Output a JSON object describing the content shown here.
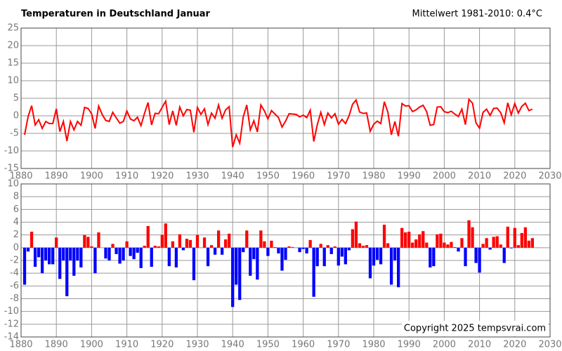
{
  "chart_data": [
    {
      "type": "line",
      "title": "Temperaturen in Deutschland Januar",
      "subtitle": "Mittelwert 1981-2010: 0.4°C",
      "color": "#ff0000",
      "x": [
        1881,
        1882,
        1883,
        1884,
        1885,
        1886,
        1887,
        1888,
        1889,
        1890,
        1891,
        1892,
        1893,
        1894,
        1895,
        1896,
        1897,
        1898,
        1899,
        1900,
        1901,
        1902,
        1903,
        1904,
        1905,
        1906,
        1907,
        1908,
        1909,
        1910,
        1911,
        1912,
        1913,
        1914,
        1915,
        1916,
        1917,
        1918,
        1919,
        1920,
        1921,
        1922,
        1923,
        1924,
        1925,
        1926,
        1927,
        1928,
        1929,
        1930,
        1931,
        1932,
        1933,
        1934,
        1935,
        1936,
        1937,
        1938,
        1939,
        1940,
        1941,
        1942,
        1943,
        1944,
        1945,
        1946,
        1947,
        1948,
        1949,
        1950,
        1951,
        1952,
        1953,
        1954,
        1955,
        1956,
        1957,
        1958,
        1959,
        1960,
        1961,
        1962,
        1963,
        1964,
        1965,
        1966,
        1967,
        1968,
        1969,
        1970,
        1971,
        1972,
        1973,
        1974,
        1975,
        1976,
        1977,
        1978,
        1979,
        1980,
        1981,
        1982,
        1983,
        1984,
        1985,
        1986,
        1987,
        1988,
        1989,
        1990,
        1991,
        1992,
        1993,
        1994,
        1995,
        1996,
        1997,
        1998,
        1999,
        2000,
        2001,
        2002,
        2003,
        2004,
        2005,
        2006,
        2007,
        2008,
        2009,
        2010,
        2011,
        2012,
        2013,
        2014,
        2015,
        2016,
        2017,
        2018,
        2019,
        2020,
        2021,
        2022,
        2023,
        2024,
        2025
      ],
      "values": [
        -5.4,
        -0.2,
        2.9,
        -2.6,
        -1.1,
        -3.6,
        -1.6,
        -2.2,
        -2.2,
        2.0,
        -4.5,
        -1.6,
        -7.2,
        -1.6,
        -4.0,
        -1.6,
        -2.7,
        2.4,
        2.1,
        0.6,
        -3.6,
        2.8,
        0.4,
        -1.3,
        -1.6,
        1.0,
        -0.6,
        -2.1,
        -1.6,
        1.4,
        -0.9,
        -1.4,
        -0.4,
        -2.8,
        0.7,
        3.8,
        -2.6,
        0.7,
        0.6,
        2.4,
        4.2,
        -2.5,
        1.4,
        -2.7,
        2.5,
        0.0,
        1.8,
        1.6,
        -4.7,
        2.4,
        0.4,
        2.0,
        -2.5,
        0.8,
        -0.7,
        3.1,
        -0.7,
        1.7,
        2.6,
        -8.9,
        -5.4,
        -7.8,
        -0.3,
        3.1,
        -4.0,
        -1.4,
        -4.6,
        3.1,
        1.4,
        -0.9,
        1.5,
        0.5,
        -0.5,
        -3.2,
        -1.5,
        0.6,
        0.5,
        0.4,
        -0.3,
        0.2,
        -0.5,
        1.6,
        -7.3,
        -2.5,
        1.0,
        -2.5,
        0.8,
        -0.6,
        0.6,
        -2.4,
        -1.0,
        -2.2,
        0.0,
        3.3,
        4.5,
        1.1,
        0.7,
        0.8,
        -4.4,
        -2.4,
        -1.5,
        -2.2,
        4.0,
        1.1,
        -5.4,
        -1.6,
        -5.8,
        3.5,
        2.8,
        2.9,
        1.2,
        1.7,
        2.5,
        3.0,
        1.2,
        -2.7,
        -2.5,
        2.5,
        2.6,
        1.2,
        0.9,
        1.3,
        0.5,
        -0.2,
        1.9,
        -2.5,
        4.7,
        3.6,
        -2.0,
        -3.5,
        1.0,
        1.9,
        0.1,
        2.1,
        2.2,
        0.9,
        -2.0,
        3.7,
        0.3,
        3.5,
        0.8,
        2.7,
        3.6,
        1.5,
        1.9
      ],
      "xlim": [
        1880,
        2030
      ],
      "xticks": [
        1880,
        1890,
        1900,
        1910,
        1920,
        1930,
        1940,
        1950,
        1960,
        1970,
        1980,
        1990,
        2000,
        2010,
        2020,
        2030
      ],
      "ylim": [
        -15,
        25
      ],
      "yticks": [
        -15,
        -10,
        -5,
        0,
        5,
        10,
        15,
        20,
        25
      ],
      "grid": true
    },
    {
      "type": "bar",
      "annotation": "Copyright 2025 tempsvrai.com",
      "colors": {
        "positive": "#ff0000",
        "negative": "#0000ff"
      },
      "x": [
        1881,
        1882,
        1883,
        1884,
        1885,
        1886,
        1887,
        1888,
        1889,
        1890,
        1891,
        1892,
        1893,
        1894,
        1895,
        1896,
        1897,
        1898,
        1899,
        1900,
        1901,
        1902,
        1903,
        1904,
        1905,
        1906,
        1907,
        1908,
        1909,
        1910,
        1911,
        1912,
        1913,
        1914,
        1915,
        1916,
        1917,
        1918,
        1919,
        1920,
        1921,
        1922,
        1923,
        1924,
        1925,
        1926,
        1927,
        1928,
        1929,
        1930,
        1931,
        1932,
        1933,
        1934,
        1935,
        1936,
        1937,
        1938,
        1939,
        1940,
        1941,
        1942,
        1943,
        1944,
        1945,
        1946,
        1947,
        1948,
        1949,
        1950,
        1951,
        1952,
        1953,
        1954,
        1955,
        1956,
        1957,
        1958,
        1959,
        1960,
        1961,
        1962,
        1963,
        1964,
        1965,
        1966,
        1967,
        1968,
        1969,
        1970,
        1971,
        1972,
        1973,
        1974,
        1975,
        1976,
        1977,
        1978,
        1979,
        1980,
        1981,
        1982,
        1983,
        1984,
        1985,
        1986,
        1987,
        1988,
        1989,
        1990,
        1991,
        1992,
        1993,
        1994,
        1995,
        1996,
        1997,
        1998,
        1999,
        2000,
        2001,
        2002,
        2003,
        2004,
        2005,
        2006,
        2007,
        2008,
        2009,
        2010,
        2011,
        2012,
        2013,
        2014,
        2015,
        2016,
        2017,
        2018,
        2019,
        2020,
        2021,
        2022,
        2023,
        2024,
        2025
      ],
      "values": [
        -5.8,
        -0.6,
        2.5,
        -3.0,
        -1.5,
        -4.0,
        -2.0,
        -2.6,
        -2.6,
        1.6,
        -4.9,
        -2.0,
        -7.6,
        -2.0,
        -4.4,
        -2.0,
        -3.1,
        2.0,
        1.7,
        0.2,
        -4.0,
        2.4,
        0.0,
        -1.7,
        -2.0,
        0.6,
        -1.0,
        -2.5,
        -2.0,
        1.0,
        -1.3,
        -1.8,
        -0.8,
        -3.2,
        0.3,
        3.4,
        -3.0,
        0.3,
        0.2,
        2.0,
        3.8,
        -2.9,
        1.0,
        -3.1,
        2.1,
        -0.4,
        1.4,
        1.2,
        -5.1,
        2.0,
        0.0,
        1.6,
        -2.9,
        0.4,
        -1.1,
        2.7,
        -1.1,
        1.3,
        2.2,
        -9.3,
        -5.8,
        -8.2,
        -0.7,
        2.7,
        -4.4,
        -1.8,
        -5.0,
        2.7,
        1.0,
        -1.3,
        1.1,
        0.1,
        -0.9,
        -3.6,
        -1.9,
        0.2,
        0.1,
        0.0,
        -0.7,
        -0.2,
        -0.9,
        1.2,
        -7.7,
        -2.9,
        0.6,
        -2.9,
        0.4,
        -1.0,
        0.2,
        -2.8,
        -1.4,
        -2.6,
        -0.4,
        2.9,
        4.1,
        0.7,
        0.3,
        0.4,
        -4.8,
        -2.8,
        -1.9,
        -2.6,
        3.6,
        0.7,
        -5.8,
        -2.0,
        -6.2,
        3.1,
        2.4,
        2.5,
        0.8,
        1.3,
        2.1,
        2.6,
        0.8,
        -3.1,
        -2.9,
        2.1,
        2.2,
        0.8,
        0.5,
        0.9,
        0.1,
        -0.6,
        1.5,
        -2.9,
        4.3,
        3.2,
        -2.4,
        -3.9,
        0.6,
        1.5,
        -0.3,
        1.7,
        1.8,
        0.5,
        -2.4,
        3.3,
        -0.1,
        3.1,
        0.4,
        2.3,
        3.2,
        1.1,
        1.5
      ],
      "xlim": [
        1880,
        2030
      ],
      "xticks": [
        1880,
        1890,
        1900,
        1910,
        1920,
        1930,
        1940,
        1950,
        1960,
        1970,
        1980,
        1990,
        2000,
        2010,
        2020,
        2030
      ],
      "ylim": [
        -14,
        10
      ],
      "yticks": [
        -14,
        -12,
        -10,
        -8,
        -6,
        -4,
        -2,
        0,
        2,
        4,
        6,
        8,
        10
      ],
      "grid": true
    }
  ]
}
